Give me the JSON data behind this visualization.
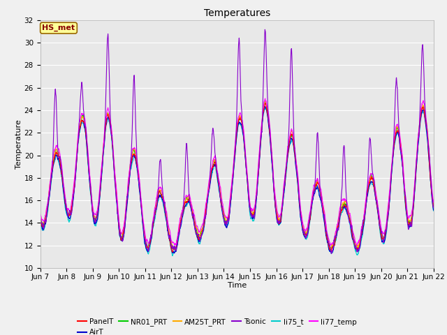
{
  "title": "Temperatures",
  "xlabel": "Time",
  "ylabel": "Temperature",
  "ylim": [
    10,
    32
  ],
  "yticks": [
    10,
    12,
    14,
    16,
    18,
    20,
    22,
    24,
    26,
    28,
    30,
    32
  ],
  "fig_bg_color": "#f0f0f0",
  "plot_bg_color": "#e8e8e8",
  "grid_color": "#ffffff",
  "annotation_text": "HS_met",
  "annotation_bg": "#ffff99",
  "annotation_border": "#996600",
  "annotation_text_color": "#880000",
  "series": [
    "PanelT",
    "AirT",
    "NR01_PRT",
    "AM25T_PRT",
    "Tsonic",
    "li75_t",
    "li77_temp"
  ],
  "colors": [
    "#ff0000",
    "#0000cc",
    "#00cc00",
    "#ffaa00",
    "#8800cc",
    "#00cccc",
    "#ff00ff"
  ],
  "linewidth": 0.8,
  "num_points": 2160,
  "date_labels": [
    "Jun 7",
    "Jun 8",
    "Jun 9",
    "Jun 10",
    "Jun 11",
    "Jun 12",
    "Jun 13",
    "Jun 14",
    "Jun 15",
    "Jun 16",
    "Jun 17",
    "Jun 18",
    "Jun 19",
    "Jun 20",
    "Jun 21",
    "Jun 22"
  ],
  "date_ticks": [
    0,
    144,
    288,
    432,
    576,
    720,
    864,
    1008,
    1152,
    1296,
    1440,
    1584,
    1728,
    1872,
    2016,
    2160
  ]
}
